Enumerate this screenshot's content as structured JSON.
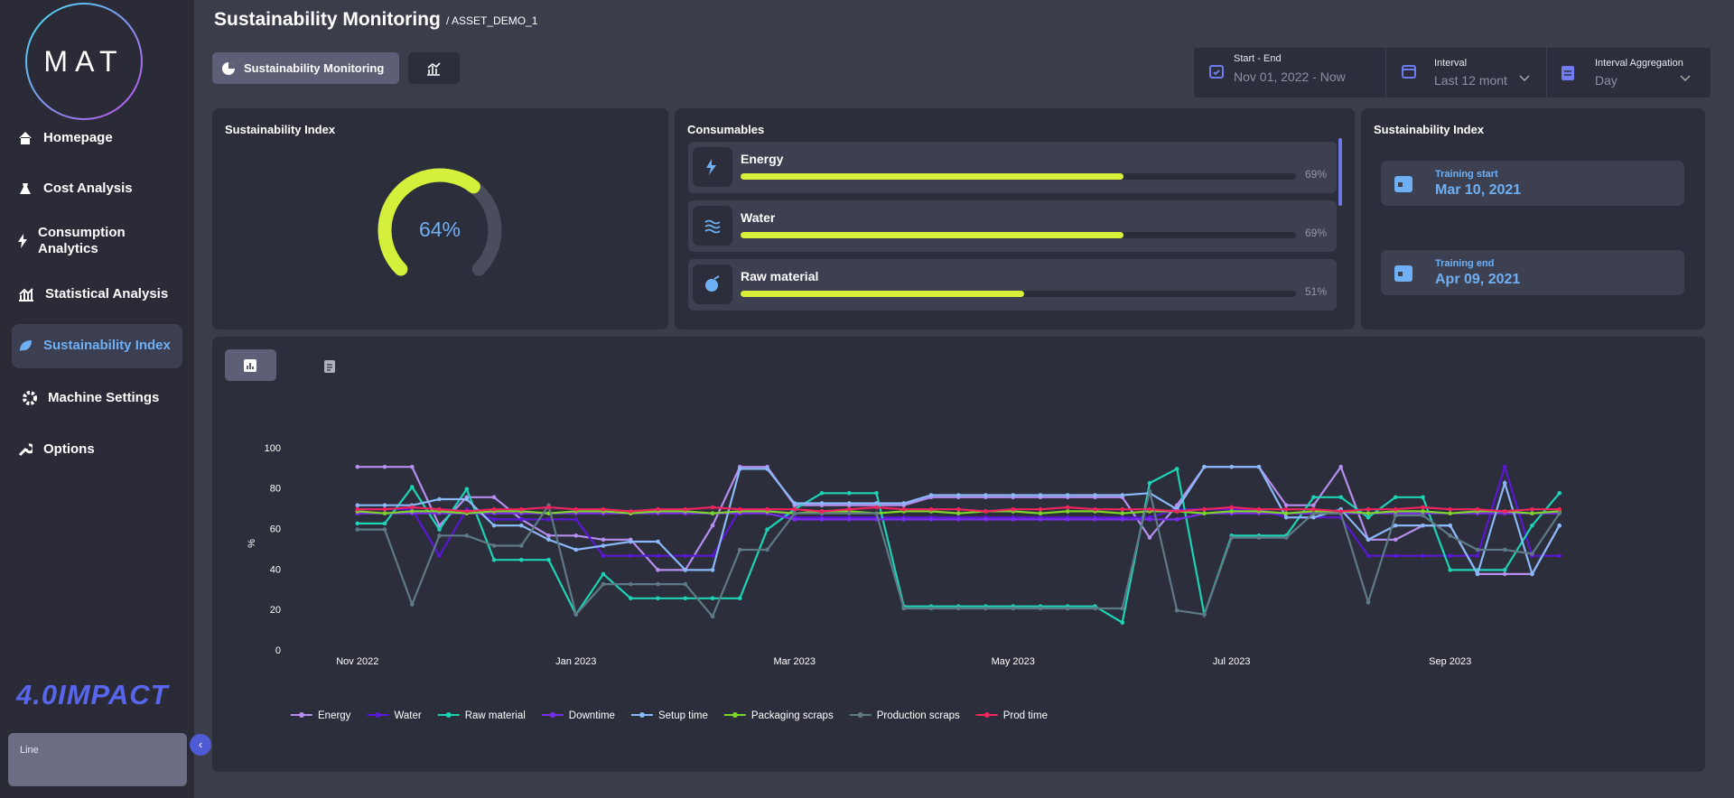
{
  "sidebar": {
    "logo": "MAT",
    "nav": [
      "Homepage",
      "Cost Analysis",
      "Consumption Analytics",
      "Statistical Analysis",
      "Sustainability Index",
      "Machine Settings",
      "Options"
    ],
    "brand": "4.0IMPACT",
    "panel_label": "Line"
  },
  "header": {
    "title": "Sustainability Monitoring",
    "asset": "/ ASSET_DEMO_1"
  },
  "tabs": {
    "active": "Sustainability Monitoring"
  },
  "filters": [
    {
      "label": "Start - End",
      "value": "Nov 01, 2022 - Now"
    },
    {
      "label": "Interval",
      "value": "Last 12 mont"
    },
    {
      "label": "Interval Aggregation",
      "value": "Day"
    }
  ],
  "index_card": {
    "title": "Sustainability Index",
    "value": 64,
    "value_label": "64%"
  },
  "consumables": {
    "title": "Consumables",
    "items": [
      {
        "name": "Energy",
        "value": 69,
        "value_label": "69%"
      },
      {
        "name": "Water",
        "value": 69,
        "value_label": "69%"
      },
      {
        "name": "Raw material",
        "value": 51,
        "value_label": "51%"
      }
    ]
  },
  "training": {
    "title": "Sustainability Index",
    "start_label": "Training start",
    "start": "Mar 10, 2021",
    "end_label": "Training end",
    "end": "Apr 09, 2021"
  },
  "chart_data": {
    "type": "line",
    "y_label": "%",
    "grid": false,
    "xlim": [
      -0.8,
      11.3
    ],
    "xticks": [
      {
        "value": 0,
        "label": "Nov 2022"
      },
      {
        "value": 2,
        "label": "Jan 2023"
      },
      {
        "value": 4,
        "label": "Mar 2023"
      },
      {
        "value": 6,
        "label": "May 2023"
      },
      {
        "value": 8,
        "label": "Jul 2023"
      },
      {
        "value": 10,
        "label": "Sep 2023"
      }
    ],
    "ylim": [
      0,
      100
    ],
    "yticks": [
      0,
      20,
      40,
      60,
      80,
      100
    ],
    "x": [
      0,
      0.25,
      0.5,
      0.75,
      1,
      1.25,
      1.5,
      1.75,
      2,
      2.25,
      2.5,
      2.75,
      3,
      3.25,
      3.5,
      3.75,
      4,
      4.25,
      4.5,
      4.75,
      5,
      5.25,
      5.5,
      5.75,
      6,
      6.25,
      6.5,
      6.75,
      7,
      7.25,
      7.5,
      7.75,
      8,
      8.25,
      8.5,
      8.75,
      9,
      9.25,
      9.5,
      9.75,
      10,
      10.25,
      10.5,
      10.75,
      11
    ],
    "series": [
      {
        "name": "Energy",
        "color": "#b58ef0",
        "values": [
          91,
          91,
          91,
          62,
          76,
          76,
          65,
          57,
          57,
          55,
          55,
          40,
          40,
          62,
          91,
          91,
          72,
          72,
          72,
          72,
          72,
          76,
          76,
          76,
          76,
          76,
          76,
          76,
          76,
          56,
          72,
          91,
          91,
          91,
          72,
          72,
          91,
          55,
          55,
          62,
          62,
          38,
          38,
          38,
          62
        ]
      },
      {
        "name": "Water",
        "color": "#5a17d4",
        "values": [
          70,
          70,
          70,
          47,
          70,
          65,
          65,
          65,
          65,
          47,
          47,
          47,
          47,
          47,
          70,
          70,
          66,
          66,
          66,
          66,
          66,
          66,
          66,
          66,
          66,
          66,
          66,
          66,
          66,
          66,
          70,
          70,
          70,
          70,
          66,
          66,
          66,
          47,
          47,
          47,
          47,
          47,
          91,
          47,
          47
        ]
      },
      {
        "name": "Raw material",
        "color": "#1dd3b6",
        "values": [
          63,
          63,
          81,
          60,
          80,
          45,
          45,
          45,
          18,
          38,
          26,
          26,
          26,
          26,
          26,
          60,
          70,
          78,
          78,
          78,
          22,
          22,
          22,
          22,
          22,
          22,
          22,
          22,
          14,
          83,
          90,
          18,
          57,
          57,
          57,
          76,
          76,
          66,
          76,
          76,
          40,
          40,
          40,
          62,
          78
        ]
      },
      {
        "name": "Downtime",
        "color": "#7b2cf0",
        "values": [
          68,
          68,
          68,
          68,
          68,
          68,
          68,
          68,
          68,
          68,
          68,
          68,
          68,
          68,
          68,
          68,
          65,
          65,
          65,
          65,
          65,
          65,
          65,
          65,
          65,
          65,
          65,
          65,
          65,
          65,
          65,
          68,
          68,
          68,
          68,
          68,
          68,
          68,
          68,
          68,
          68,
          68,
          68,
          68,
          68
        ]
      },
      {
        "name": "Setup time",
        "color": "#8ab8f8",
        "values": [
          72,
          72,
          72,
          75,
          75,
          62,
          62,
          55,
          50,
          52,
          54,
          54,
          40,
          40,
          90,
          90,
          73,
          73,
          73,
          73,
          73,
          77,
          77,
          77,
          77,
          77,
          77,
          77,
          77,
          78,
          70,
          91,
          91,
          91,
          66,
          66,
          70,
          55,
          62,
          62,
          62,
          38,
          83,
          38,
          62
        ]
      },
      {
        "name": "Packaging scraps",
        "color": "#7cd62a",
        "values": [
          69,
          68,
          69,
          69,
          68,
          69,
          69,
          68,
          69,
          69,
          68,
          69,
          69,
          68,
          69,
          69,
          68,
          69,
          69,
          68,
          69,
          69,
          68,
          69,
          69,
          68,
          69,
          69,
          68,
          69,
          69,
          68,
          69,
          69,
          68,
          69,
          69,
          68,
          69,
          69,
          68,
          69,
          69,
          68,
          69
        ]
      },
      {
        "name": "Production scraps",
        "color": "#5e7a86",
        "values": [
          60,
          60,
          23,
          57,
          57,
          52,
          52,
          72,
          18,
          33,
          33,
          33,
          33,
          17,
          50,
          50,
          68,
          68,
          68,
          68,
          21,
          21,
          21,
          21,
          21,
          21,
          21,
          21,
          21,
          79,
          20,
          18,
          56,
          56,
          56,
          68,
          68,
          24,
          67,
          67,
          57,
          50,
          50,
          48,
          68
        ]
      },
      {
        "name": "Prod time",
        "color": "#f0245f",
        "values": [
          70,
          70,
          71,
          70,
          69,
          70,
          70,
          71,
          70,
          70,
          69,
          70,
          70,
          71,
          70,
          70,
          70,
          69,
          70,
          71,
          70,
          70,
          70,
          69,
          70,
          70,
          71,
          70,
          70,
          70,
          69,
          70,
          71,
          70,
          70,
          70,
          69,
          70,
          70,
          71,
          70,
          70,
          69,
          70,
          70
        ]
      }
    ]
  }
}
